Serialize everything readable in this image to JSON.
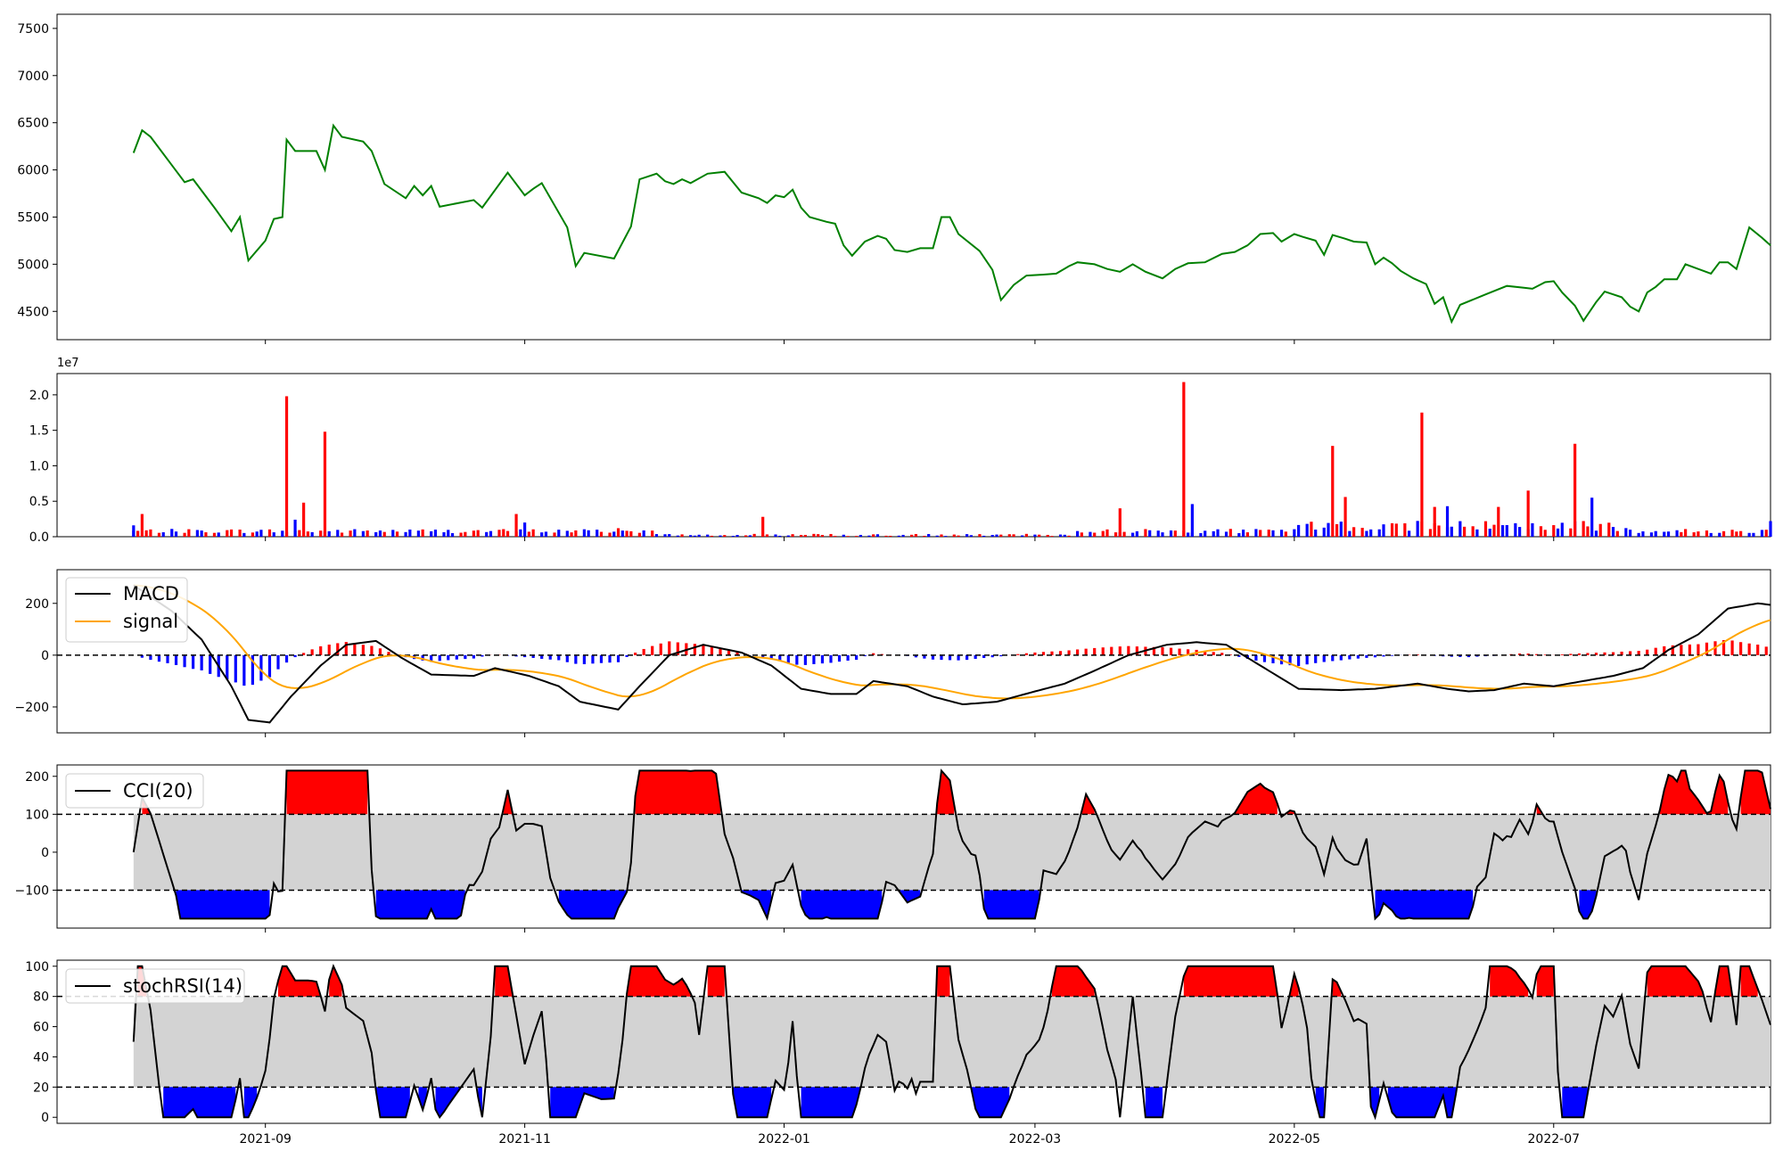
{
  "chart_data": [
    {
      "panel": "price",
      "type": "line",
      "colors": {
        "line": "#008000"
      },
      "ylim": [
        4200,
        7650
      ],
      "yticks": [
        4500,
        5000,
        5500,
        6000,
        6500,
        7000,
        7500
      ],
      "keypoints": [
        [
          "2021-08-01",
          6180
        ],
        [
          "2021-08-03",
          6420
        ],
        [
          "2021-08-05",
          6350
        ],
        [
          "2021-08-10",
          6050
        ],
        [
          "2021-08-13",
          5870
        ],
        [
          "2021-08-15",
          5900
        ],
        [
          "2021-08-20",
          5600
        ],
        [
          "2021-08-24",
          5350
        ],
        [
          "2021-08-26",
          5500
        ],
        [
          "2021-08-28",
          5040
        ],
        [
          "2021-09-01",
          5250
        ],
        [
          "2021-09-03",
          5480
        ],
        [
          "2021-09-05",
          5500
        ],
        [
          "2021-09-06",
          6320
        ],
        [
          "2021-09-08",
          6200
        ],
        [
          "2021-09-13",
          6200
        ],
        [
          "2021-09-15",
          6000
        ],
        [
          "2021-09-17",
          6470
        ],
        [
          "2021-09-19",
          6350
        ],
        [
          "2021-09-24",
          6300
        ],
        [
          "2021-09-26",
          6200
        ],
        [
          "2021-09-29",
          5850
        ],
        [
          "2021-10-04",
          5700
        ],
        [
          "2021-10-06",
          5830
        ],
        [
          "2021-10-08",
          5730
        ],
        [
          "2021-10-10",
          5830
        ],
        [
          "2021-10-12",
          5610
        ],
        [
          "2021-10-20",
          5680
        ],
        [
          "2021-10-22",
          5600
        ],
        [
          "2021-10-28",
          5970
        ],
        [
          "2021-11-01",
          5730
        ],
        [
          "2021-11-03",
          5800
        ],
        [
          "2021-11-05",
          5860
        ],
        [
          "2021-11-11",
          5390
        ],
        [
          "2021-11-13",
          4980
        ],
        [
          "2021-11-15",
          5120
        ],
        [
          "2021-11-22",
          5060
        ],
        [
          "2021-11-26",
          5400
        ],
        [
          "2021-11-28",
          5900
        ],
        [
          "2021-12-02",
          5960
        ],
        [
          "2021-12-04",
          5880
        ],
        [
          "2021-12-06",
          5850
        ],
        [
          "2021-12-08",
          5900
        ],
        [
          "2021-12-10",
          5860
        ],
        [
          "2021-12-14",
          5960
        ],
        [
          "2021-12-18",
          5980
        ],
        [
          "2021-12-22",
          5760
        ],
        [
          "2021-12-26",
          5700
        ],
        [
          "2021-12-28",
          5650
        ],
        [
          "2021-12-30",
          5730
        ],
        [
          "2022-01-01",
          5710
        ],
        [
          "2022-01-03",
          5790
        ],
        [
          "2022-01-05",
          5600
        ],
        [
          "2022-01-07",
          5500
        ],
        [
          "2022-01-11",
          5450
        ],
        [
          "2022-01-13",
          5430
        ],
        [
          "2022-01-15",
          5200
        ],
        [
          "2022-01-17",
          5090
        ],
        [
          "2022-01-20",
          5240
        ],
        [
          "2022-01-23",
          5300
        ],
        [
          "2022-01-25",
          5270
        ],
        [
          "2022-01-27",
          5150
        ],
        [
          "2022-01-30",
          5130
        ],
        [
          "2022-02-02",
          5170
        ],
        [
          "2022-02-05",
          5170
        ],
        [
          "2022-02-07",
          5500
        ],
        [
          "2022-02-09",
          5500
        ],
        [
          "2022-02-11",
          5320
        ],
        [
          "2022-02-16",
          5140
        ],
        [
          "2022-02-19",
          4940
        ],
        [
          "2022-02-21",
          4620
        ],
        [
          "2022-02-24",
          4780
        ],
        [
          "2022-02-27",
          4880
        ],
        [
          "2022-03-03",
          4890
        ],
        [
          "2022-03-06",
          4900
        ],
        [
          "2022-03-09",
          4980
        ],
        [
          "2022-03-11",
          5020
        ],
        [
          "2022-03-15",
          5000
        ],
        [
          "2022-03-18",
          4950
        ],
        [
          "2022-03-21",
          4920
        ],
        [
          "2022-03-24",
          5000
        ],
        [
          "2022-03-27",
          4920
        ],
        [
          "2022-03-31",
          4850
        ],
        [
          "2022-04-03",
          4950
        ],
        [
          "2022-04-06",
          5010
        ],
        [
          "2022-04-10",
          5020
        ],
        [
          "2022-04-14",
          5110
        ],
        [
          "2022-04-17",
          5130
        ],
        [
          "2022-04-20",
          5200
        ],
        [
          "2022-04-23",
          5320
        ],
        [
          "2022-04-26",
          5330
        ],
        [
          "2022-04-28",
          5240
        ],
        [
          "2022-05-01",
          5320
        ],
        [
          "2022-05-03",
          5290
        ],
        [
          "2022-05-06",
          5250
        ],
        [
          "2022-05-08",
          5100
        ],
        [
          "2022-05-10",
          5310
        ],
        [
          "2022-05-13",
          5270
        ],
        [
          "2022-05-15",
          5240
        ],
        [
          "2022-05-18",
          5230
        ],
        [
          "2022-05-20",
          5000
        ],
        [
          "2022-05-22",
          5070
        ],
        [
          "2022-05-24",
          5010
        ],
        [
          "2022-05-26",
          4930
        ],
        [
          "2022-05-29",
          4850
        ],
        [
          "2022-06-01",
          4790
        ],
        [
          "2022-06-03",
          4580
        ],
        [
          "2022-06-05",
          4650
        ],
        [
          "2022-06-07",
          4390
        ],
        [
          "2022-06-09",
          4570
        ],
        [
          "2022-06-15",
          4680
        ],
        [
          "2022-06-20",
          4770
        ],
        [
          "2022-06-24",
          4750
        ],
        [
          "2022-06-26",
          4740
        ],
        [
          "2022-06-29",
          4810
        ],
        [
          "2022-07-01",
          4820
        ],
        [
          "2022-07-03",
          4700
        ],
        [
          "2022-07-06",
          4560
        ],
        [
          "2022-07-08",
          4400
        ],
        [
          "2022-07-11",
          4600
        ],
        [
          "2022-07-13",
          4710
        ],
        [
          "2022-07-15",
          4680
        ],
        [
          "2022-07-17",
          4650
        ],
        [
          "2022-07-19",
          4550
        ],
        [
          "2022-07-21",
          4500
        ],
        [
          "2022-07-23",
          4700
        ],
        [
          "2022-07-25",
          4760
        ],
        [
          "2022-07-27",
          4840
        ],
        [
          "2022-07-30",
          4840
        ],
        [
          "2022-08-01",
          5000
        ],
        [
          "2022-08-04",
          4950
        ],
        [
          "2022-08-07",
          4900
        ],
        [
          "2022-08-09",
          5020
        ],
        [
          "2022-08-11",
          5020
        ],
        [
          "2022-08-13",
          4950
        ],
        [
          "2022-08-16",
          5390
        ],
        [
          "2022-08-19",
          5280
        ],
        [
          "2022-08-21",
          5200
        ]
      ],
      "points_note": "",
      "segments": [],
      "x_range": [
        "2021-07-14",
        "2022-08-21"
      ],
      "xticks": [
        "2021-09",
        "2021-11",
        "2022-01",
        "2022-03",
        "2022-05",
        "2022-07"
      ],
      "series_points": []
    },
    {
      "panel": "volume",
      "type": "bar",
      "offset_label": "1e7",
      "ylim": [
        0,
        2.3
      ],
      "yticks": [
        0.0,
        0.5,
        1.0,
        1.5,
        2.0
      ],
      "ytick_labels": [
        "0.0",
        "0.5",
        "1.0",
        "1.5",
        "2.0"
      ],
      "colors": {
        "up": "#ff0000",
        "down": "#0000ff"
      },
      "spikes": [
        [
          "2021-08-01",
          0.16,
          "down"
        ],
        [
          "2021-08-03",
          0.32,
          "up"
        ],
        [
          "2021-09-06",
          1.98,
          "up"
        ],
        [
          "2021-09-08",
          0.24,
          "down"
        ],
        [
          "2021-09-10",
          0.48,
          "up"
        ],
        [
          "2021-09-15",
          1.48,
          "up"
        ],
        [
          "2021-10-30",
          0.32,
          "up"
        ],
        [
          "2021-11-01",
          0.2,
          "down"
        ],
        [
          "2021-11-23",
          0.12,
          "up"
        ],
        [
          "2021-12-27",
          0.28,
          "up"
        ],
        [
          "2022-03-21",
          0.4,
          "up"
        ],
        [
          "2022-04-05",
          2.18,
          "up"
        ],
        [
          "2022-04-07",
          0.46,
          "down"
        ],
        [
          "2022-05-10",
          1.28,
          "up"
        ],
        [
          "2022-05-13",
          0.56,
          "up"
        ],
        [
          "2022-05-31",
          1.75,
          "up"
        ],
        [
          "2022-06-03",
          0.42,
          "up"
        ],
        [
          "2022-06-06",
          0.43,
          "down"
        ],
        [
          "2022-06-18",
          0.42,
          "up"
        ],
        [
          "2022-06-25",
          0.65,
          "up"
        ],
        [
          "2022-07-06",
          1.31,
          "up"
        ],
        [
          "2022-07-10",
          0.55,
          "down"
        ],
        [
          "2022-08-21",
          0.22,
          "down"
        ]
      ]
    },
    {
      "panel": "macd",
      "type": "line",
      "ylim": [
        -300,
        330
      ],
      "yticks": [
        -200,
        0,
        200
      ],
      "ytick_labels": [
        "−200",
        "0",
        "200"
      ],
      "colors": {
        "macd": "#000000",
        "signal": "#ffa500",
        "hist_up": "#ff0000",
        "hist_down": "#0000ff",
        "zero": "#000000"
      },
      "series": [
        {
          "name": "MACD",
          "points": [
            [
              "2021-08-01",
              270
            ],
            [
              "2021-08-10",
              170
            ],
            [
              "2021-08-17",
              60
            ],
            [
              "2021-08-24",
              -120
            ],
            [
              "2021-08-28",
              -250
            ],
            [
              "2021-09-02",
              -260
            ],
            [
              "2021-09-07",
              -160
            ],
            [
              "2021-09-14",
              -40
            ],
            [
              "2021-09-20",
              40
            ],
            [
              "2021-09-27",
              55
            ],
            [
              "2021-10-03",
              -10
            ],
            [
              "2021-10-10",
              -75
            ],
            [
              "2021-10-20",
              -80
            ],
            [
              "2021-10-25",
              -50
            ],
            [
              "2021-11-02",
              -80
            ],
            [
              "2021-11-09",
              -120
            ],
            [
              "2021-11-14",
              -180
            ],
            [
              "2021-11-23",
              -210
            ],
            [
              "2021-11-28",
              -120
            ],
            [
              "2021-12-05",
              0
            ],
            [
              "2021-12-13",
              40
            ],
            [
              "2021-12-22",
              10
            ],
            [
              "2021-12-29",
              -40
            ],
            [
              "2022-01-05",
              -130
            ],
            [
              "2022-01-12",
              -150
            ],
            [
              "2022-01-18",
              -150
            ],
            [
              "2022-01-22",
              -100
            ],
            [
              "2022-01-30",
              -120
            ],
            [
              "2022-02-05",
              -160
            ],
            [
              "2022-02-12",
              -190
            ],
            [
              "2022-02-20",
              -180
            ],
            [
              "2022-03-01",
              -140
            ],
            [
              "2022-03-08",
              -110
            ],
            [
              "2022-03-15",
              -60
            ],
            [
              "2022-03-23",
              0
            ],
            [
              "2022-04-01",
              40
            ],
            [
              "2022-04-08",
              50
            ],
            [
              "2022-04-15",
              40
            ],
            [
              "2022-04-20",
              -10
            ],
            [
              "2022-04-26",
              -70
            ],
            [
              "2022-05-02",
              -130
            ],
            [
              "2022-05-12",
              -135
            ],
            [
              "2022-05-20",
              -130
            ],
            [
              "2022-05-30",
              -110
            ],
            [
              "2022-06-06",
              -130
            ],
            [
              "2022-06-11",
              -140
            ],
            [
              "2022-06-17",
              -135
            ],
            [
              "2022-06-24",
              -110
            ],
            [
              "2022-07-01",
              -120
            ],
            [
              "2022-07-08",
              -100
            ],
            [
              "2022-07-15",
              -80
            ],
            [
              "2022-07-22",
              -50
            ],
            [
              "2022-07-28",
              20
            ],
            [
              "2022-08-04",
              80
            ],
            [
              "2022-08-11",
              180
            ],
            [
              "2022-08-18",
              200
            ],
            [
              "2022-08-23",
              190
            ]
          ]
        },
        {
          "name": "signal",
          "points": []
        }
      ]
    },
    {
      "panel": "cci",
      "type": "line",
      "ylim": [
        -200,
        230
      ],
      "yticks": [
        -100,
        0,
        100,
        200
      ],
      "ytick_labels": [
        "−100",
        "0",
        "100",
        "200"
      ],
      "band": [
        -100,
        100
      ],
      "colors": {
        "line": "#000000",
        "band": "#d3d3d3",
        "over": "#ff0000",
        "under": "#0000ff"
      },
      "series": [
        {
          "name": "CCI(20)",
          "points": []
        }
      ]
    },
    {
      "panel": "stochrsi",
      "type": "line",
      "ylim": [
        -4,
        104
      ],
      "yticks": [
        0,
        20,
        40,
        60,
        80,
        100
      ],
      "ytick_labels": [
        "0",
        "20",
        "40",
        "60",
        "80",
        "100"
      ],
      "band": [
        20,
        80
      ],
      "colors": {
        "line": "#000000",
        "band": "#d3d3d3",
        "over": "#ff0000",
        "under": "#0000ff"
      },
      "series": [
        {
          "name": "stochRSI(14)",
          "points": []
        }
      ]
    }
  ]
}
